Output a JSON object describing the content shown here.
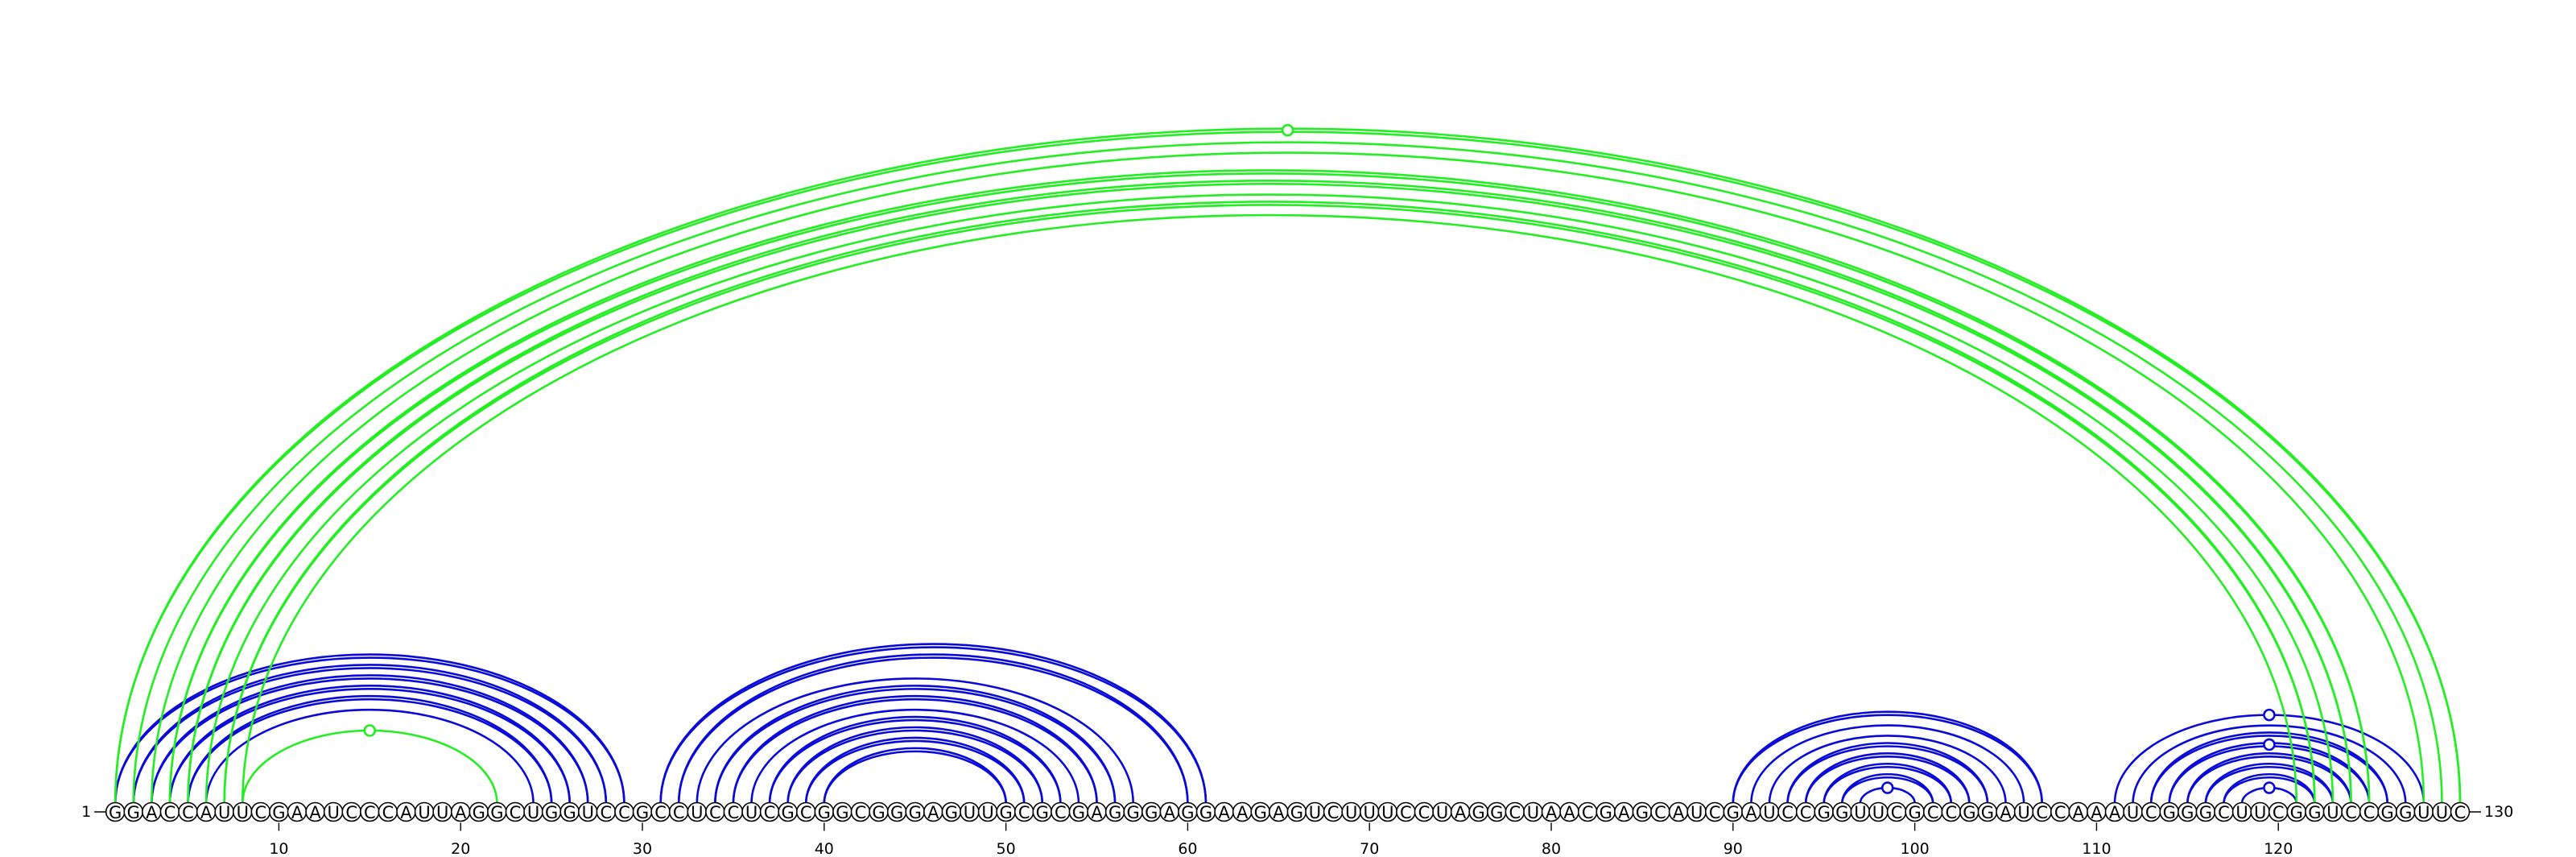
{
  "sequence": "GGACCAUUCGAAUCCCAUUAGGCUGGUCCGCCUCCUCGCGGCGGGAGUUGCGCGAGGGAGGAAGAGUCUUUCCUAGGCUAACGAGCAUCGAUCCGGUUCGCCGGAUCCAAAUCGGGCUUCGGUCCGGUUC",
  "start_label": "1",
  "end_label": "130",
  "tick_labels": [
    "10",
    "20",
    "30",
    "40",
    "50",
    "60",
    "70",
    "80",
    "90",
    "100",
    "110",
    "120"
  ],
  "colors": {
    "blue": "#0a0ad8",
    "green": "#22ee22"
  },
  "arcs": [
    {
      "i": 1,
      "j": 29,
      "color": "blue",
      "double": true
    },
    {
      "i": 2,
      "j": 28,
      "color": "blue",
      "double": true
    },
    {
      "i": 3,
      "j": 27,
      "color": "blue",
      "double": true
    },
    {
      "i": 4,
      "j": 26,
      "color": "blue",
      "double": true
    },
    {
      "i": 5,
      "j": 25,
      "color": "blue",
      "double": true
    },
    {
      "i": 6,
      "j": 24,
      "color": "blue",
      "double": false
    },
    {
      "i": 8,
      "j": 22,
      "color": "green",
      "double": false
    },
    {
      "i": 31,
      "j": 61,
      "color": "blue",
      "double": true
    },
    {
      "i": 32,
      "j": 60,
      "color": "blue",
      "double": true
    },
    {
      "i": 33,
      "j": 57,
      "color": "blue",
      "double": false
    },
    {
      "i": 34,
      "j": 56,
      "color": "blue",
      "double": true
    },
    {
      "i": 35,
      "j": 55,
      "color": "blue",
      "double": true
    },
    {
      "i": 36,
      "j": 54,
      "color": "blue",
      "double": false
    },
    {
      "i": 37,
      "j": 53,
      "color": "blue",
      "double": true
    },
    {
      "i": 38,
      "j": 52,
      "color": "blue",
      "double": true
    },
    {
      "i": 39,
      "j": 51,
      "color": "blue",
      "double": true
    },
    {
      "i": 40,
      "j": 50,
      "color": "blue",
      "double": true
    },
    {
      "i": 90,
      "j": 107,
      "color": "blue",
      "double": true
    },
    {
      "i": 91,
      "j": 106,
      "color": "blue",
      "double": false
    },
    {
      "i": 92,
      "j": 105,
      "color": "blue",
      "double": false
    },
    {
      "i": 93,
      "j": 104,
      "color": "blue",
      "double": true
    },
    {
      "i": 94,
      "j": 103,
      "color": "blue",
      "double": true
    },
    {
      "i": 95,
      "j": 102,
      "color": "blue",
      "double": true
    },
    {
      "i": 96,
      "j": 101,
      "color": "blue",
      "double": true
    },
    {
      "i": 97,
      "j": 100,
      "color": "blue",
      "double": false
    },
    {
      "i": 111,
      "j": 128,
      "color": "blue",
      "double": false
    },
    {
      "i": 112,
      "j": 127,
      "color": "blue",
      "double": false
    },
    {
      "i": 113,
      "j": 126,
      "color": "blue",
      "double": true
    },
    {
      "i": 114,
      "j": 125,
      "color": "blue",
      "double": true
    },
    {
      "i": 115,
      "j": 124,
      "color": "blue",
      "double": true
    },
    {
      "i": 116,
      "j": 123,
      "color": "blue",
      "double": true
    },
    {
      "i": 117,
      "j": 122,
      "color": "blue",
      "double": true
    },
    {
      "i": 118,
      "j": 121,
      "color": "blue",
      "double": false
    },
    {
      "i": 1,
      "j": 130,
      "color": "green",
      "double": true
    },
    {
      "i": 2,
      "j": 129,
      "color": "green",
      "double": false
    },
    {
      "i": 3,
      "j": 128,
      "color": "green",
      "double": false
    },
    {
      "i": 4,
      "j": 125,
      "color": "green",
      "double": true
    },
    {
      "i": 5,
      "j": 124,
      "color": "green",
      "double": true
    },
    {
      "i": 6,
      "j": 123,
      "color": "green",
      "double": false
    },
    {
      "i": 7,
      "j": 122,
      "color": "green",
      "double": true
    },
    {
      "i": 8,
      "j": 121,
      "color": "green",
      "double": false
    }
  ],
  "markers": [
    {
      "pos": 15,
      "arc_index": 6,
      "color": "green"
    },
    {
      "pos": 65.5,
      "arc_index": 33,
      "color": "green"
    },
    {
      "pos": 98.5,
      "arc_index": 24,
      "color": "blue"
    },
    {
      "pos": 119.5,
      "arc_index": 25,
      "color": "blue"
    },
    {
      "pos": 119.5,
      "arc_index": 28,
      "color": "blue"
    },
    {
      "pos": 119.5,
      "arc_index": 32,
      "color": "blue"
    }
  ]
}
